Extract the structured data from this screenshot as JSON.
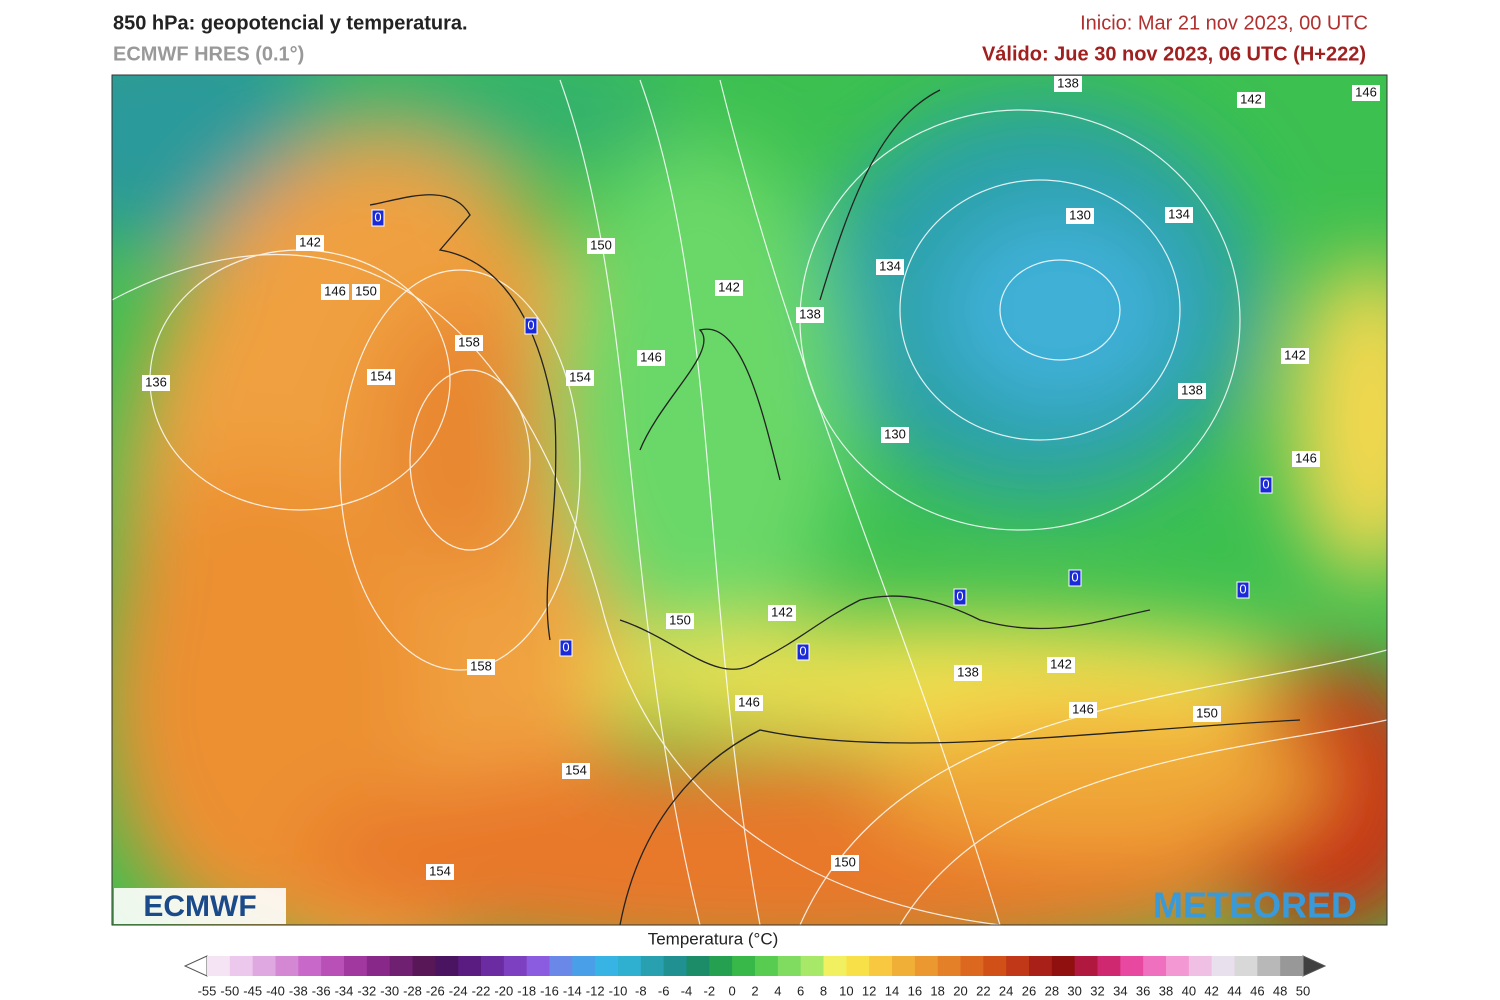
{
  "header": {
    "title": "850 hPa: geopotencial y temperatura.",
    "model": "ECMWF HRES (0.1°)",
    "init": "Inicio: Mar 21 nov 2023, 00 UTC",
    "valid": "Válido: Jue 30 nov 2023, 06 UTC (H+222)"
  },
  "map": {
    "contour_labels": [
      "138",
      "142",
      "146",
      "130",
      "134",
      "150",
      "142",
      "146",
      "150",
      "134",
      "142",
      "138",
      "158",
      "146",
      "154",
      "154",
      "136",
      "142",
      "138",
      "130",
      "146",
      "142",
      "150",
      "138",
      "142",
      "158",
      "146",
      "146",
      "150",
      "154",
      "150",
      "154"
    ],
    "zero_labels": [
      "0",
      "0",
      "0",
      "0",
      "0",
      "0",
      "0",
      "0"
    ],
    "logos": [
      "ECMWF",
      "METEORED"
    ]
  },
  "legend": {
    "title": "Temperatura (°C)",
    "ticks": [
      -55,
      -50,
      -45,
      -40,
      -38,
      -36,
      -34,
      -32,
      -30,
      -28,
      -26,
      -24,
      -22,
      -20,
      -18,
      -16,
      -14,
      -12,
      -10,
      -8,
      -6,
      -4,
      -2,
      0,
      2,
      4,
      6,
      8,
      10,
      12,
      14,
      16,
      18,
      20,
      22,
      24,
      26,
      28,
      30,
      32,
      34,
      36,
      38,
      40,
      42,
      44,
      46,
      48,
      50
    ],
    "colors": [
      "#f4e4f4",
      "#ecc8ec",
      "#e0a8e0",
      "#d488d4",
      "#c868c8",
      "#b850b8",
      "#a038a0",
      "#882888",
      "#702070",
      "#581858",
      "#4a1460",
      "#5a1c80",
      "#6a2ca0",
      "#7c40c0",
      "#8c5ce0",
      "#6a88e8",
      "#4aa0e8",
      "#38b4e4",
      "#30b0d0",
      "#28a0b0",
      "#209090",
      "#1c8c68",
      "#24a050",
      "#38b848",
      "#58cc50",
      "#80dc60",
      "#a8e868",
      "#f0f060",
      "#f8e048",
      "#f8c840",
      "#f0b038",
      "#ec9830",
      "#e48028",
      "#dc6820",
      "#d05018",
      "#c03818",
      "#a82018",
      "#901010",
      "#b01840",
      "#d02870",
      "#e848a0",
      "#f070c0",
      "#f498d4",
      "#f0c0e4",
      "#e8e0ec",
      "#d8d8d8",
      "#b8b8b8",
      "#989898"
    ]
  }
}
